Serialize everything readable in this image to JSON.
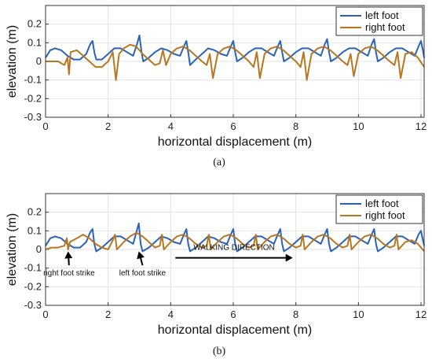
{
  "chart_data": [
    {
      "type": "line",
      "caption": "(a)",
      "xlabel": "horizontal displacement (m)",
      "ylabel": "elevation (m)",
      "xlim": [
        0,
        12.1
      ],
      "ylim": [
        -0.3,
        0.3
      ],
      "xticks": [
        "0",
        "2",
        "4",
        "6",
        "8",
        "10",
        "12"
      ],
      "yticks": [
        "-0.3",
        "-0.2",
        "-0.1",
        "0",
        "0.1",
        "0.2"
      ],
      "grid": true,
      "legend": "top-right",
      "series": [
        {
          "name": "left foot",
          "color": "#2a62b8",
          "x": [
            0,
            0.15,
            0.3,
            0.5,
            0.7,
            0.9,
            1.1,
            1.3,
            1.42,
            1.5,
            1.56,
            1.62,
            1.8,
            2.0,
            2.2,
            2.4,
            2.6,
            2.8,
            2.92,
            3.0,
            3.06,
            3.12,
            3.3,
            3.5,
            3.7,
            3.9,
            4.1,
            4.3,
            4.42,
            4.5,
            4.56,
            4.62,
            4.8,
            5.0,
            5.2,
            5.4,
            5.6,
            5.8,
            5.92,
            6.0,
            6.06,
            6.12,
            6.3,
            6.5,
            6.7,
            6.9,
            7.1,
            7.3,
            7.42,
            7.5,
            7.56,
            7.62,
            7.8,
            8.0,
            8.2,
            8.4,
            8.6,
            8.8,
            8.92,
            9.0,
            9.06,
            9.12,
            9.3,
            9.5,
            9.7,
            9.9,
            10.1,
            10.3,
            10.42,
            10.5,
            10.56,
            10.62,
            10.8,
            11.0,
            11.2,
            11.4,
            11.6,
            11.8,
            11.92,
            12.0,
            12.06,
            12.1
          ],
          "y": [
            0.02,
            0.06,
            0.07,
            0.06,
            0.03,
            0.01,
            0.01,
            0.04,
            0.09,
            0.11,
            0.05,
            0.01,
            0.01,
            0.04,
            0.07,
            0.07,
            0.05,
            0.03,
            0.09,
            0.14,
            0.06,
            0.0,
            0.02,
            0.05,
            0.07,
            0.06,
            0.04,
            0.03,
            0.08,
            0.11,
            0.05,
            -0.02,
            0.01,
            0.04,
            0.07,
            0.06,
            0.04,
            0.03,
            0.08,
            0.11,
            0.05,
            0.0,
            0.02,
            0.05,
            0.07,
            0.07,
            0.05,
            0.03,
            0.08,
            0.11,
            0.05,
            0.0,
            0.02,
            0.05,
            0.07,
            0.07,
            0.05,
            0.03,
            0.09,
            0.12,
            0.05,
            0.0,
            0.02,
            0.05,
            0.07,
            0.07,
            0.05,
            0.03,
            0.09,
            0.12,
            0.05,
            0.0,
            0.02,
            0.05,
            0.07,
            0.07,
            0.05,
            0.03,
            0.08,
            0.11,
            0.06,
            0.02
          ]
        },
        {
          "name": "right foot",
          "color": "#b8761e",
          "x": [
            0,
            0.2,
            0.4,
            0.6,
            0.7,
            0.75,
            0.8,
            1.0,
            1.2,
            1.4,
            1.6,
            1.8,
            2.0,
            2.15,
            2.25,
            2.35,
            2.5,
            2.7,
            2.9,
            3.1,
            3.3,
            3.5,
            3.65,
            3.75,
            3.85,
            4.0,
            4.2,
            4.4,
            4.6,
            4.8,
            5.0,
            5.15,
            5.25,
            5.35,
            5.5,
            5.7,
            5.9,
            6.1,
            6.3,
            6.5,
            6.65,
            6.75,
            6.85,
            7.0,
            7.2,
            7.4,
            7.6,
            7.8,
            8.0,
            8.15,
            8.25,
            8.35,
            8.5,
            8.7,
            8.9,
            9.1,
            9.3,
            9.5,
            9.65,
            9.75,
            9.85,
            10.0,
            10.2,
            10.4,
            10.6,
            10.8,
            11.0,
            11.15,
            11.25,
            11.35,
            11.5,
            11.7,
            11.9,
            12.1
          ],
          "y": [
            0.0,
            0.0,
            0.0,
            -0.02,
            0.02,
            -0.07,
            0.05,
            0.06,
            0.03,
            0.0,
            -0.03,
            -0.03,
            0.0,
            0.05,
            -0.1,
            0.04,
            0.07,
            0.09,
            0.08,
            0.04,
            0.01,
            -0.02,
            -0.01,
            0.06,
            -0.02,
            0.04,
            0.07,
            0.08,
            0.06,
            0.03,
            0.0,
            -0.02,
            0.04,
            -0.09,
            0.04,
            0.07,
            0.08,
            0.06,
            0.03,
            0.0,
            -0.03,
            0.05,
            -0.09,
            0.04,
            0.07,
            0.08,
            0.06,
            0.03,
            0.0,
            -0.03,
            0.05,
            -0.1,
            0.04,
            0.07,
            0.08,
            0.06,
            0.03,
            0.0,
            -0.02,
            0.04,
            -0.08,
            0.04,
            0.07,
            0.08,
            0.06,
            0.03,
            0.0,
            -0.02,
            0.05,
            -0.09,
            0.04,
            0.05,
            0.02,
            -0.03
          ]
        }
      ]
    },
    {
      "type": "line",
      "caption": "(b)",
      "xlabel": "horizontal displacement (m)",
      "ylabel": "elevation (m)",
      "xlim": [
        0,
        12.1
      ],
      "ylim": [
        -0.3,
        0.3
      ],
      "xticks": [
        "0",
        "2",
        "4",
        "6",
        "8",
        "10",
        "12"
      ],
      "yticks": [
        "-0.3",
        "-0.2",
        "-0.1",
        "0",
        "0.1",
        "0.2"
      ],
      "grid": true,
      "legend": "top-right",
      "annotations": [
        {
          "text": "right foot strike",
          "arrow_from": [
            0.75,
            -0.085
          ],
          "arrow_to": [
            0.72,
            -0.01
          ]
        },
        {
          "text": "left foot strike",
          "arrow_from": [
            3.1,
            -0.085
          ],
          "arrow_to": [
            2.98,
            -0.01
          ]
        },
        {
          "text": "WALKING DIRECTION",
          "arrow_from": [
            4.15,
            -0.045
          ],
          "arrow_to": [
            7.9,
            -0.045
          ]
        }
      ],
      "series": [
        {
          "name": "left foot",
          "color": "#2a62b8",
          "x": [
            0,
            0.15,
            0.3,
            0.5,
            0.7,
            0.9,
            1.1,
            1.3,
            1.42,
            1.5,
            1.56,
            1.62,
            1.8,
            2.0,
            2.2,
            2.4,
            2.6,
            2.8,
            2.9,
            2.98,
            3.04,
            3.1,
            3.3,
            3.5,
            3.7,
            3.9,
            4.1,
            4.3,
            4.42,
            4.5,
            4.56,
            4.62,
            4.8,
            5.0,
            5.2,
            5.4,
            5.6,
            5.8,
            5.92,
            6.0,
            6.06,
            6.12,
            6.3,
            6.5,
            6.7,
            6.9,
            7.1,
            7.3,
            7.42,
            7.5,
            7.56,
            7.62,
            7.8,
            8.0,
            8.2,
            8.4,
            8.6,
            8.8,
            8.92,
            9.0,
            9.06,
            9.12,
            9.3,
            9.5,
            9.7,
            9.9,
            10.1,
            10.3,
            10.42,
            10.5,
            10.56,
            10.62,
            10.8,
            11.0,
            11.2,
            11.4,
            11.6,
            11.8,
            11.92,
            12.0,
            12.06,
            12.1
          ],
          "y": [
            0.02,
            0.06,
            0.07,
            0.06,
            0.03,
            0.01,
            0.01,
            0.04,
            0.09,
            0.11,
            0.03,
            -0.01,
            0.01,
            0.04,
            0.07,
            0.07,
            0.05,
            0.03,
            0.09,
            0.14,
            0.03,
            -0.01,
            0.01,
            0.04,
            0.07,
            0.06,
            0.04,
            0.03,
            0.08,
            0.11,
            0.03,
            -0.01,
            0.01,
            0.04,
            0.07,
            0.06,
            0.04,
            0.03,
            0.08,
            0.11,
            0.03,
            -0.01,
            0.01,
            0.04,
            0.07,
            0.07,
            0.05,
            0.03,
            0.08,
            0.11,
            0.03,
            -0.01,
            0.01,
            0.04,
            0.07,
            0.07,
            0.05,
            0.03,
            0.08,
            0.11,
            0.03,
            -0.01,
            0.01,
            0.04,
            0.07,
            0.07,
            0.05,
            0.03,
            0.08,
            0.11,
            0.03,
            -0.01,
            0.01,
            0.04,
            0.07,
            0.07,
            0.05,
            0.03,
            0.08,
            0.1,
            0.05,
            0.02
          ]
        },
        {
          "name": "right foot",
          "color": "#b8761e",
          "x": [
            0,
            0.2,
            0.4,
            0.6,
            0.68,
            0.72,
            0.78,
            1.0,
            1.2,
            1.4,
            1.6,
            1.8,
            2.0,
            2.15,
            2.22,
            2.28,
            2.5,
            2.7,
            2.9,
            3.1,
            3.3,
            3.5,
            3.65,
            3.72,
            3.78,
            4.0,
            4.2,
            4.4,
            4.6,
            4.8,
            5.0,
            5.15,
            5.22,
            5.28,
            5.5,
            5.7,
            5.9,
            6.1,
            6.3,
            6.5,
            6.65,
            6.72,
            6.78,
            7.0,
            7.2,
            7.4,
            7.6,
            7.8,
            8.0,
            8.15,
            8.22,
            8.28,
            8.5,
            8.7,
            8.9,
            9.1,
            9.3,
            9.5,
            9.65,
            9.72,
            9.78,
            10.0,
            10.2,
            10.4,
            10.6,
            10.8,
            11.0,
            11.15,
            11.22,
            11.28,
            11.5,
            11.7,
            11.9,
            12.1
          ],
          "y": [
            0.0,
            0.01,
            0.01,
            0.02,
            0.06,
            0.0,
            0.04,
            0.06,
            0.08,
            0.06,
            0.03,
            0.01,
            0.0,
            0.05,
            0.08,
            0.0,
            0.04,
            0.07,
            0.09,
            0.07,
            0.04,
            0.01,
            0.02,
            0.08,
            0.0,
            0.04,
            0.07,
            0.08,
            0.06,
            0.03,
            0.01,
            0.02,
            0.08,
            0.0,
            0.04,
            0.07,
            0.08,
            0.06,
            0.03,
            0.01,
            0.02,
            0.08,
            0.0,
            0.04,
            0.07,
            0.08,
            0.06,
            0.03,
            0.01,
            0.02,
            0.08,
            0.0,
            0.04,
            0.07,
            0.08,
            0.06,
            0.03,
            0.01,
            0.02,
            0.08,
            0.0,
            0.04,
            0.07,
            0.08,
            0.06,
            0.03,
            0.01,
            0.02,
            0.08,
            0.0,
            0.04,
            0.05,
            0.03,
            -0.01
          ]
        }
      ]
    }
  ]
}
